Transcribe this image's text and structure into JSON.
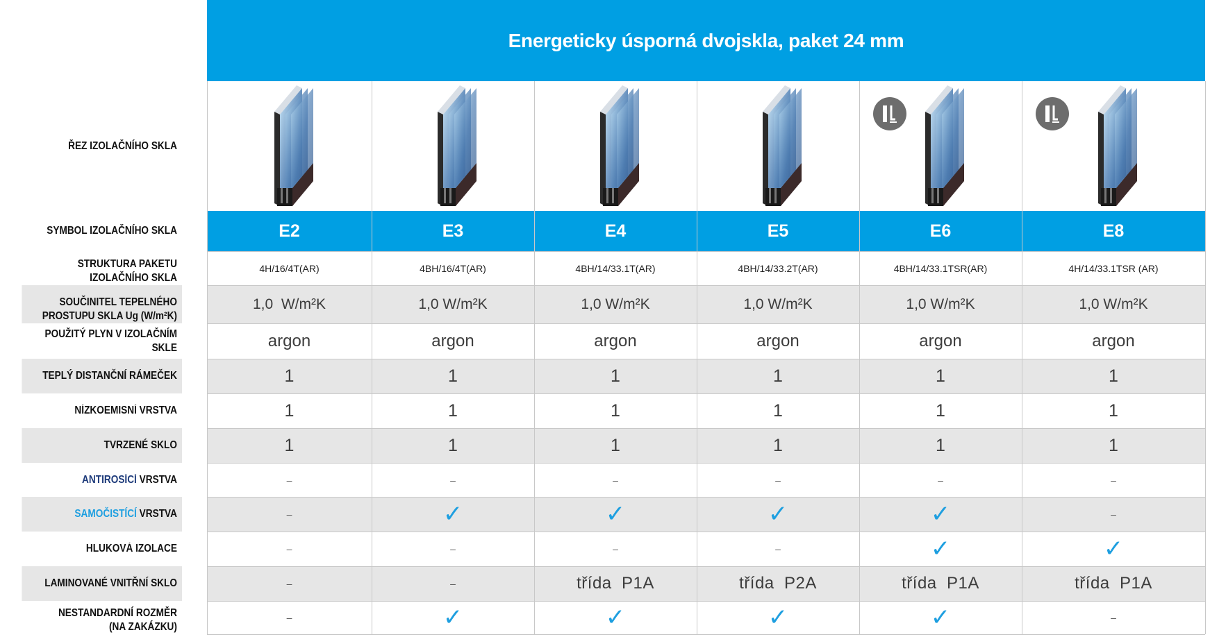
{
  "title": "Energeticky úsporná dvojskla, paket 24 mm",
  "colors": {
    "accent": "#009fe3",
    "check": "#1e9fe0",
    "row_shade": "#e6e6e6"
  },
  "labels": {
    "cross_section": "ŘEZ IZOLAČNÍHO SKLA",
    "symbol": "SYMBOL IZOLAČNÍHO SKLA",
    "structure_l1": "STRUKTURA PAKETU",
    "structure_l2": "IZOLAČNÍHO SKLA",
    "ug_l1": "SOUČINITEL TEPELNÉHO",
    "ug_l2": "PROSTUPU SKLA Ug (W/m²K)",
    "gas": "POUŽITÝ PLYN V IZOLAČNÍM SKLE",
    "spacer": "TEPLÝ DISTANČNÍ RÁMEČEK",
    "lowe": "NÍZKOEMISNÍ VRSTVA",
    "tempered": "TVRZENÉ SKLO",
    "antidew_accent": "ANTIROSÍCÍ",
    "antidew_rest": " VRSTVA",
    "selfclean_accent": "SAMOČISTÍCÍ",
    "selfclean_rest": " VRSTVA",
    "noise": "HLUKOVÁ IZOLACE",
    "laminated": "LAMINOVANÉ VNITŘNÍ SKLO",
    "nonstandard_l1": "NESTANDARDNÍ ROZMĚR",
    "nonstandard_l2": "(NA ZAKÁZKU)"
  },
  "columns": [
    {
      "symbol": "E2",
      "structure": "4H/16/4T(AR)",
      "ug": "1,0  W/m²K",
      "gas": "argon",
      "spacer": "1",
      "lowe": "1",
      "tempered": "1",
      "antidew": "–",
      "selfclean": "–",
      "noise": "–",
      "laminated": "–",
      "nonstandard": "–",
      "badge": false
    },
    {
      "symbol": "E3",
      "structure": "4BH/16/4T(AR)",
      "ug": "1,0 W/m²K",
      "gas": "argon",
      "spacer": "1",
      "lowe": "1",
      "tempered": "1",
      "antidew": "–",
      "selfclean": "✓",
      "noise": "–",
      "laminated": "–",
      "nonstandard": "✓",
      "badge": false
    },
    {
      "symbol": "E4",
      "structure": "4BH/14/33.1T(AR)",
      "ug": "1,0 W/m²K",
      "gas": "argon",
      "spacer": "1",
      "lowe": "1",
      "tempered": "1",
      "antidew": "–",
      "selfclean": "✓",
      "noise": "–",
      "laminated": "třída  P1A",
      "nonstandard": "✓",
      "badge": false
    },
    {
      "symbol": "E5",
      "structure": "4BH/14/33.2T(AR)",
      "ug": "1,0 W/m²K",
      "gas": "argon",
      "spacer": "1",
      "lowe": "1",
      "tempered": "1",
      "antidew": "–",
      "selfclean": "✓",
      "noise": "–",
      "laminated": "třída  P2A",
      "nonstandard": "✓",
      "badge": false
    },
    {
      "symbol": "E6",
      "structure": "4BH/14/33.1TSR(AR)",
      "ug": "1,0 W/m²K",
      "gas": "argon",
      "spacer": "1",
      "lowe": "1",
      "tempered": "1",
      "antidew": "–",
      "selfclean": "✓",
      "noise": "✓",
      "laminated": "třída  P1A",
      "nonstandard": "✓",
      "badge": true
    },
    {
      "symbol": "E8",
      "structure": "4H/14/33.1TSR (AR)",
      "ug": "1,0 W/m²K",
      "gas": "argon",
      "spacer": "1",
      "lowe": "1",
      "tempered": "1",
      "antidew": "–",
      "selfclean": "–",
      "noise": "✓",
      "laminated": "třída  P1A",
      "nonstandard": "–",
      "badge": true
    }
  ]
}
